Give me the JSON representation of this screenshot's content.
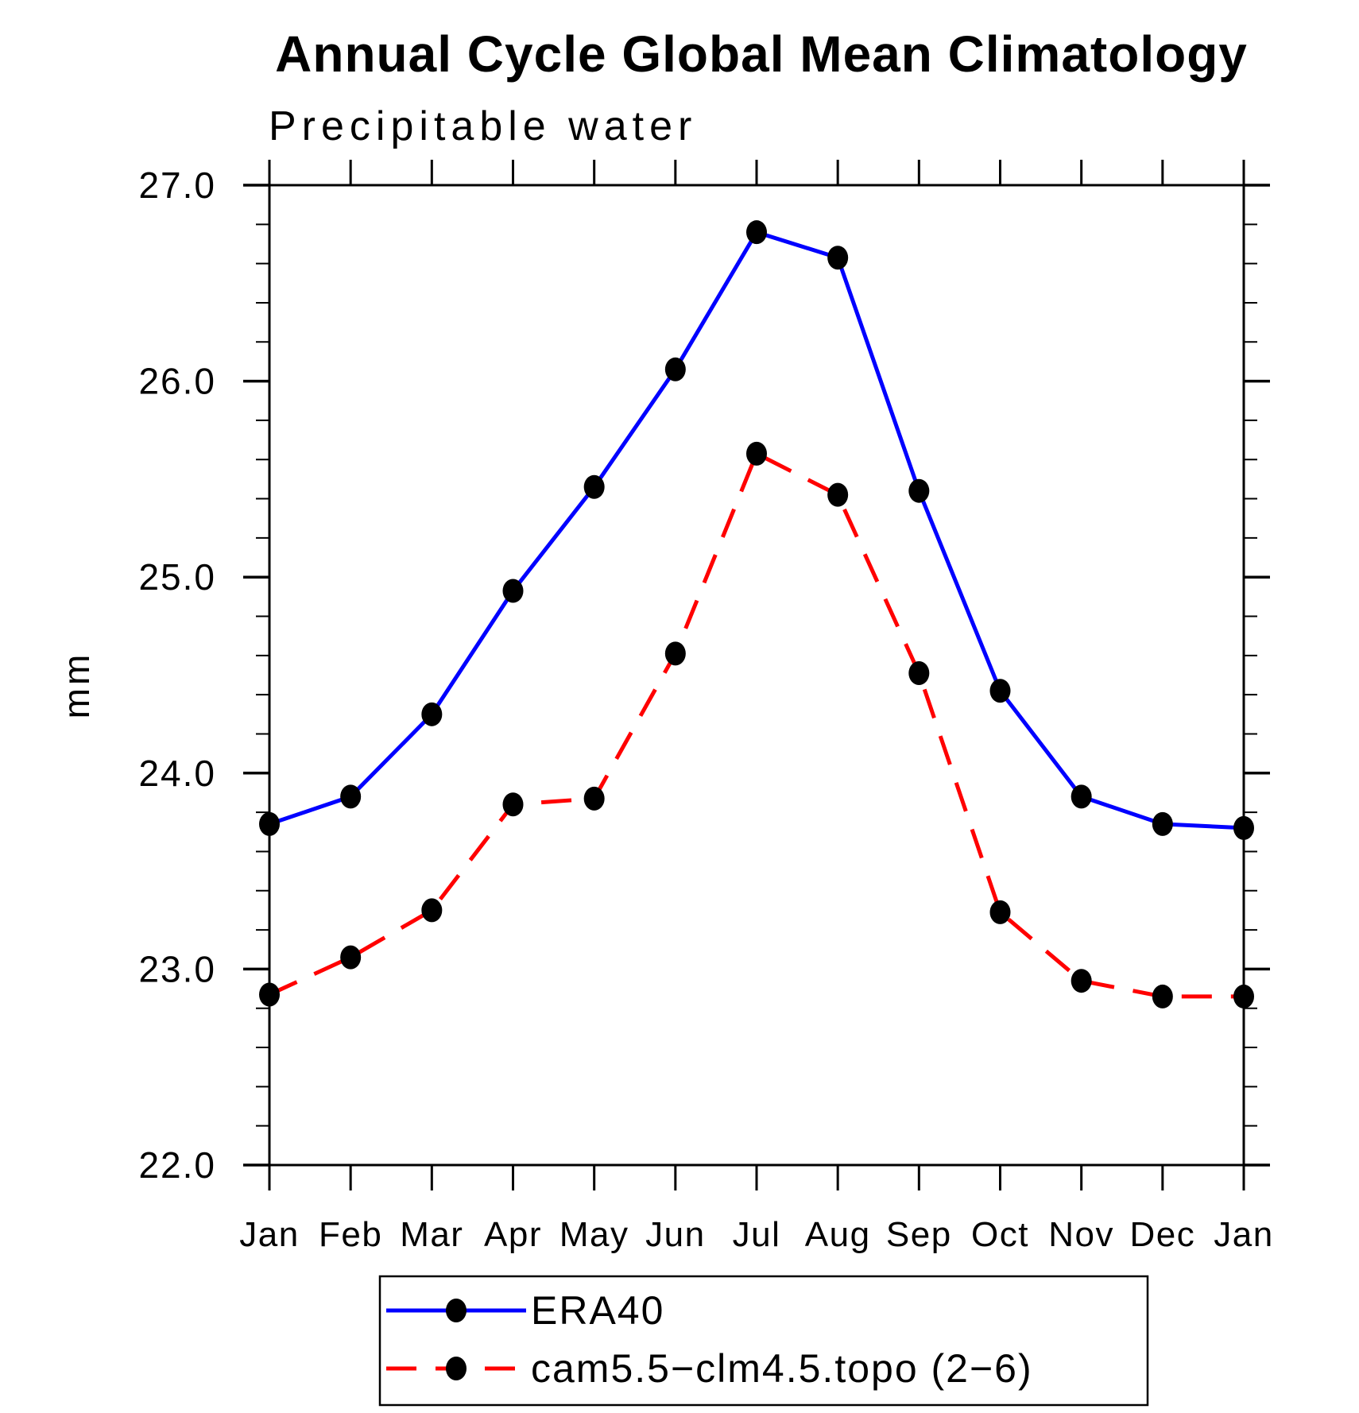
{
  "title": "Annual Cycle Global Mean Climatology",
  "subtitle": "Precipitable water",
  "chart_data": {
    "type": "line",
    "title": "Annual Cycle Global Mean Climatology",
    "subtitle": "Precipitable water",
    "ylabel": "mm",
    "xlabel": "",
    "x_ticklabels": [
      "Jan",
      "Feb",
      "Mar",
      "Apr",
      "May",
      "Jun",
      "Jul",
      "Aug",
      "Sep",
      "Oct",
      "Nov",
      "Dec",
      "Jan"
    ],
    "y_tick_labels": [
      "22.0",
      "23.0",
      "24.0",
      "25.0",
      "26.0",
      "27.0"
    ],
    "y_ticks": [
      22.0,
      23.0,
      24.0,
      25.0,
      26.0,
      27.0
    ],
    "y_minor_step": 0.2,
    "ylim": [
      22.0,
      27.0
    ],
    "grid": false,
    "legend_position": "bottom",
    "axis_color": "#000000",
    "marker_color": "#000000",
    "series": [
      {
        "name": "ERA40",
        "color": "#0000ff",
        "style": "solid",
        "marker": "circle",
        "values": [
          23.74,
          23.88,
          24.3,
          24.93,
          25.46,
          26.06,
          26.76,
          26.63,
          25.44,
          24.42,
          23.88,
          23.74,
          23.72
        ]
      },
      {
        "name": "cam5.5−clm4.5.topo (2−6)",
        "color": "#ff0000",
        "style": "dashed",
        "marker": "circle",
        "values": [
          22.87,
          23.06,
          23.3,
          23.84,
          23.87,
          24.61,
          25.63,
          25.42,
          24.51,
          23.29,
          22.94,
          22.86,
          22.86
        ]
      }
    ]
  }
}
